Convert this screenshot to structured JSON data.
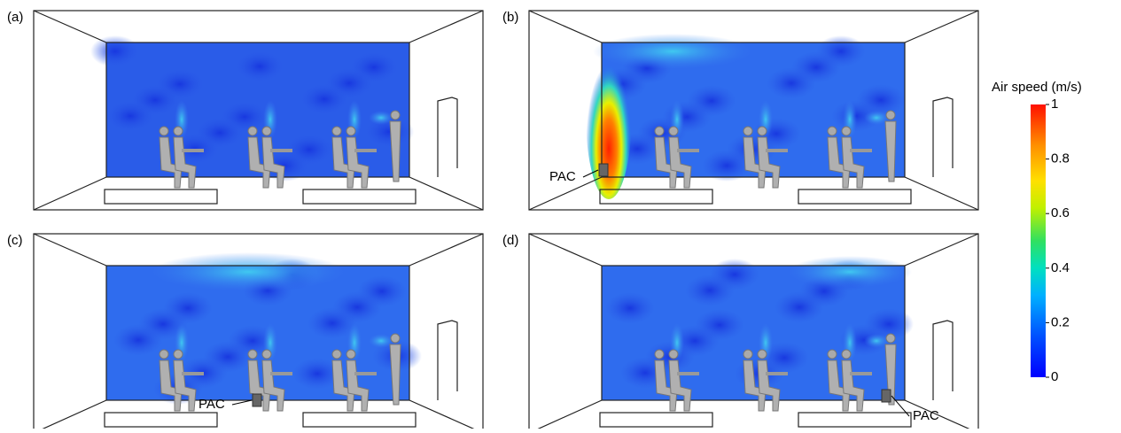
{
  "panels": [
    {
      "label": "(a)"
    },
    {
      "label": "(b)",
      "annotation": "PAC"
    },
    {
      "label": "(c)",
      "annotation": "PAC"
    },
    {
      "label": "(d)",
      "annotation": "PAC"
    }
  ],
  "colorbar": {
    "title": "Air speed (m/s)",
    "lim": [
      0,
      1
    ],
    "ticks": [
      0,
      0.2,
      0.4,
      0.6,
      0.8,
      1
    ]
  }
}
